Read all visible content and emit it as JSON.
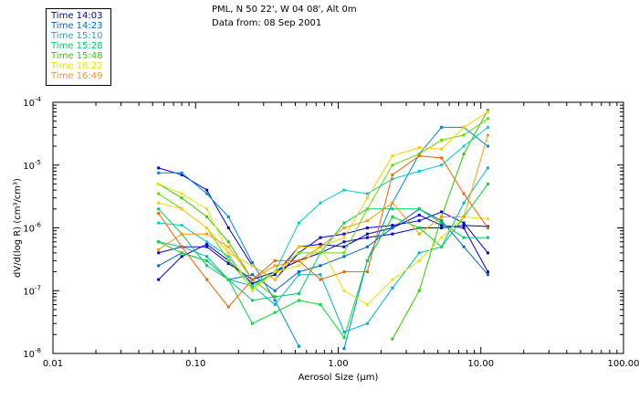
{
  "header": {
    "location": "PML, N 50 22', W 04 08', Alt 0m",
    "date_line": "Data from: 08 Sep 2001"
  },
  "chart_data": {
    "type": "line",
    "title": "",
    "xlabel": "Aerosol Size (μm)",
    "ylabel": "dV/d(log R) (cm³/cm³)",
    "x_scale": "log",
    "y_scale": "log",
    "xlim": [
      0.01,
      100
    ],
    "ylim": [
      1e-08,
      0.0001
    ],
    "x_ticks": [
      {
        "value": 0.01,
        "label": "0.01"
      },
      {
        "value": 0.1,
        "label": "0.10"
      },
      {
        "value": 1,
        "label": "1.00"
      },
      {
        "value": 10,
        "label": "10.00"
      },
      {
        "value": 100,
        "label": "100.00"
      }
    ],
    "y_ticks": [
      {
        "value": 1e-08,
        "mant": "10",
        "exp": "-8"
      },
      {
        "value": 1e-07,
        "mant": "10",
        "exp": "-7"
      },
      {
        "value": 1e-06,
        "mant": "10",
        "exp": "-6"
      },
      {
        "value": 1e-05,
        "mant": "10",
        "exp": "-5"
      },
      {
        "value": 0.0001,
        "mant": "10",
        "exp": "-4"
      }
    ],
    "legend_position": "top-left",
    "series": [
      {
        "name": "Time 14:03",
        "color": "#0000cc",
        "x": [
          0.055,
          0.08,
          0.12,
          0.17,
          0.25,
          0.36,
          0.53,
          0.75,
          1.1,
          1.6,
          2.4,
          3.7,
          5.3,
          7.6,
          11.2
        ],
        "y": [
          9e-06,
          7e-06,
          4e-06,
          1e-06,
          2.5e-07,
          1.5e-07,
          4e-07,
          7e-07,
          8e-07,
          1e-06,
          1.1e-06,
          1.3e-06,
          1.8e-06,
          1.2e-06,
          4e-07
        ]
      },
      {
        "name": "",
        "color": "#0000cc",
        "x": [
          0.055,
          0.08,
          0.12,
          0.17,
          0.25,
          0.36,
          0.53,
          0.75,
          1.1,
          1.6,
          2.4,
          3.7,
          5.3,
          7.6,
          11.2
        ],
        "y": [
          4e-07,
          5e-07,
          5e-07,
          2.7e-07,
          1.5e-07,
          2e-07,
          3e-07,
          4e-07,
          6e-07,
          7e-07,
          8e-07,
          1e-06,
          1e-06,
          1.1e-06,
          1.05e-06
        ]
      },
      {
        "name": "",
        "color": "#0000cc",
        "x": [
          0.055,
          0.08,
          0.12,
          0.17,
          0.25,
          0.36,
          0.53,
          0.75,
          1.1,
          1.6,
          2.4,
          3.7,
          5.3,
          7.6,
          11.2
        ],
        "y": [
          1.5e-07,
          3.5e-07,
          5.5e-07,
          3e-07,
          1.3e-07,
          1.8e-07,
          5e-07,
          5.5e-07,
          5e-07,
          8e-07,
          1e-06,
          1.6e-06,
          1.1e-06,
          1e-06,
          2e-07
        ]
      },
      {
        "name": "Time 14:23",
        "color": "#0066cc",
        "x": [
          0.055,
          0.08,
          0.12,
          0.17,
          0.25,
          0.36,
          0.53,
          0.75,
          1.1,
          1.6,
          2.4,
          3.7,
          5.3,
          7.6,
          11.2
        ],
        "y": [
          2.5e-07,
          4e-07,
          3e-07,
          1.5e-07,
          1.8e-07,
          1e-07,
          2e-07,
          2.5e-07,
          3.5e-07,
          5e-07,
          1e-06,
          2e-06,
          1.3e-06,
          5e-07,
          1.8e-07
        ]
      },
      {
        "name": "",
        "color": "#0088dd",
        "x": [
          0.055,
          0.08,
          0.12,
          0.17,
          0.25,
          0.36,
          0.53,
          0.75,
          1.1,
          1.6,
          2.4,
          3.7,
          5.3,
          7.6,
          11.2
        ],
        "y": [
          7.5e-06,
          7.5e-06,
          3.5e-06,
          1.5e-06,
          2.8e-07,
          7e-08,
          1.3e-08,
          null,
          1.2e-08,
          3e-07,
          2.5e-06,
          1.5e-05,
          4e-05,
          4e-05,
          2e-05
        ]
      },
      {
        "name": "Time 15:10",
        "color": "#00b4c8",
        "x": [
          0.055,
          0.08,
          0.12,
          0.17,
          0.25,
          0.36,
          0.53,
          0.75,
          1.1,
          1.6,
          2.4,
          3.7,
          5.3,
          7.6,
          11.2
        ],
        "y": [
          6e-07,
          5e-07,
          3.5e-07,
          1.5e-07,
          1.2e-07,
          6e-08,
          1.8e-07,
          1.8e-07,
          2.2e-08,
          3e-08,
          1.1e-07,
          4e-07,
          5e-07,
          2.5e-06,
          9e-06
        ]
      },
      {
        "name": "",
        "color": "#00cccc",
        "x": [
          0.055,
          0.08,
          0.12,
          0.17,
          0.25,
          0.36,
          0.53,
          0.75,
          1.1,
          1.6,
          2.4,
          3.7,
          5.3,
          7.6,
          11.2
        ],
        "y": [
          1.2e-06,
          1.1e-06,
          6e-07,
          3.5e-07,
          1.2e-07,
          2e-07,
          1.2e-06,
          2.5e-06,
          4e-06,
          3.5e-06,
          6e-06,
          8e-06,
          1e-05,
          2e-05,
          4e-05
        ]
      },
      {
        "name": "Time 15:28",
        "color": "#00cc66",
        "x": [
          0.055,
          0.08,
          0.12,
          0.17,
          0.25,
          0.36,
          0.53,
          0.75,
          1.1,
          1.6,
          2.4,
          3.7,
          5.3,
          7.6,
          11.2
        ],
        "y": [
          2e-06,
          8e-07,
          2.5e-07,
          1.5e-07,
          7e-08,
          8e-08,
          9e-08,
          4e-07,
          1.2e-06,
          2e-06,
          2e-06,
          2e-06,
          1.2e-06,
          7e-07,
          7e-07
        ]
      },
      {
        "name": "",
        "color": "#00dd33",
        "x": [
          0.055,
          0.08,
          0.12,
          0.17,
          0.25,
          0.36,
          0.53,
          0.75,
          1.1,
          1.6,
          2.4,
          3.7,
          5.3,
          7.6,
          11.2
        ],
        "y": [
          6e-07,
          4e-07,
          3e-07,
          1.5e-07,
          3e-08,
          4.5e-08,
          7e-08,
          6e-08,
          1.8e-08,
          3e-07,
          1.5e-06,
          1e-06,
          5e-07,
          1.5e-06,
          5e-06
        ]
      },
      {
        "name": "Time 15:48",
        "color": "#33cc00",
        "x": [
          0.055,
          0.08,
          0.12,
          0.17,
          0.25,
          0.36,
          0.53,
          0.75,
          1.1,
          1.6,
          2.4,
          3.7,
          5.3,
          7.6,
          11.2
        ],
        "y": [
          5e-06,
          3e-06,
          1.5e-06,
          6e-07,
          1.5e-07,
          8e-08,
          null,
          null,
          null,
          null,
          1.7e-08,
          1e-07,
          1.5e-06,
          1.5e-05,
          7.5e-05
        ]
      },
      {
        "name": "",
        "color": "#66dd00",
        "x": [
          0.055,
          0.08,
          0.12,
          0.17,
          0.25,
          0.36,
          0.53,
          0.75,
          1.1,
          1.6,
          2.4,
          3.7,
          5.3,
          7.6,
          11.2
        ],
        "y": [
          3.5e-06,
          2e-06,
          1e-06,
          3e-07,
          1.1e-07,
          2e-07,
          4e-07,
          4e-07,
          4e-07,
          2e-06,
          1e-05,
          1.5e-05,
          2.5e-05,
          3e-05,
          5.5e-05
        ]
      },
      {
        "name": "Time 16:22",
        "color": "#e6e600",
        "x": [
          0.055,
          0.08,
          0.12,
          0.17,
          0.25,
          0.36,
          0.53,
          0.75,
          1.1,
          1.6,
          2.4,
          3.7,
          5.3,
          7.6,
          11.2
        ],
        "y": [
          5e-06,
          3.5e-06,
          2e-06,
          4e-07,
          1e-07,
          2e-07,
          2.5e-07,
          5e-07,
          1e-07,
          6e-08,
          1.5e-07,
          3e-07,
          7e-07,
          1.5e-06,
          1.4e-06
        ]
      },
      {
        "name": "",
        "color": "#ffcc00",
        "x": [
          0.055,
          0.08,
          0.12,
          0.17,
          0.25,
          0.36,
          0.53,
          0.75,
          1.1,
          1.6,
          2.4,
          3.7,
          5.3,
          7.6,
          11.2
        ],
        "y": [
          2.5e-06,
          2e-06,
          1e-06,
          4e-07,
          2.5e-07,
          1.5e-07,
          5e-07,
          5e-07,
          7e-07,
          3e-06,
          1.4e-05,
          1.9e-05,
          1.8e-05,
          4e-05,
          7e-05
        ]
      },
      {
        "name": "Time 16:49",
        "color": "#ff9900",
        "x": [
          0.055,
          0.08,
          0.12,
          0.17,
          0.25,
          0.36,
          0.53,
          0.75,
          1.1,
          1.6,
          2.4,
          3.7,
          5.3,
          7.6,
          11.2
        ],
        "y": [
          4.5e-07,
          8e-07,
          8e-07,
          5e-07,
          1.5e-07,
          2.5e-07,
          3e-07,
          5e-07,
          1e-06,
          1.3e-06,
          2.5e-06,
          8e-07,
          1.5e-06,
          1.5e-06,
          3e-05
        ]
      },
      {
        "name": "",
        "color": "#ee6600",
        "x": [
          0.055,
          0.08,
          0.12,
          0.17,
          0.25,
          0.36,
          0.53,
          0.75,
          1.1,
          1.6,
          2.4,
          3.7,
          5.3,
          7.6,
          11.2
        ],
        "y": [
          1.7e-06,
          5e-07,
          1.5e-07,
          5.5e-08,
          1.5e-07,
          3e-07,
          3e-07,
          1.5e-07,
          2e-07,
          2e-07,
          7e-06,
          1.4e-05,
          1.3e-05,
          3.5e-06,
          1e-06
        ]
      }
    ]
  }
}
